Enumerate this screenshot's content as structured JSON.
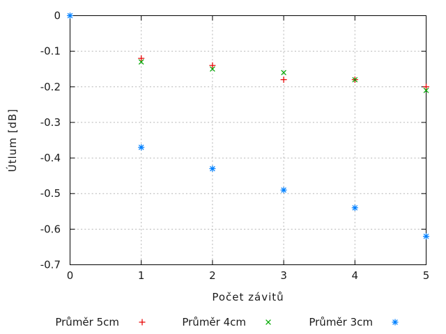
{
  "chart_data": {
    "type": "scatter",
    "title": "",
    "xlabel": "Počet závitů",
    "ylabel": "Útlum [dB]",
    "xlim": [
      0,
      5
    ],
    "ylim": [
      -0.7,
      0
    ],
    "grid": true,
    "legend_position": "bottom",
    "xticks": [
      {
        "value": 0,
        "label": "0"
      },
      {
        "value": 1,
        "label": "1"
      },
      {
        "value": 2,
        "label": "2"
      },
      {
        "value": 3,
        "label": "3"
      },
      {
        "value": 4,
        "label": "4"
      },
      {
        "value": 5,
        "label": "5"
      }
    ],
    "yticks": [
      {
        "value": 0,
        "label": "0"
      },
      {
        "value": -0.1,
        "label": "-0.1"
      },
      {
        "value": -0.2,
        "label": "-0.2"
      },
      {
        "value": -0.3,
        "label": "-0.3"
      },
      {
        "value": -0.4,
        "label": "-0.4"
      },
      {
        "value": -0.5,
        "label": "-0.5"
      },
      {
        "value": -0.6,
        "label": "-0.6"
      },
      {
        "value": -0.7,
        "label": "-0.7"
      }
    ],
    "series": [
      {
        "name": "Průměr 5cm",
        "marker": "plus",
        "color": "#e60000",
        "points": [
          [
            1,
            -0.12
          ],
          [
            2,
            -0.14
          ],
          [
            3,
            -0.18
          ],
          [
            4,
            -0.18
          ],
          [
            5,
            -0.2
          ]
        ]
      },
      {
        "name": "Průměr 4cm",
        "marker": "cross",
        "color": "#00a800",
        "points": [
          [
            1,
            -0.13
          ],
          [
            2,
            -0.15
          ],
          [
            3,
            -0.16
          ],
          [
            4,
            -0.18
          ],
          [
            5,
            -0.21
          ]
        ]
      },
      {
        "name": "Průměr 3cm",
        "marker": "asterisk",
        "color": "#0080ff",
        "points": [
          [
            0,
            0
          ],
          [
            1,
            -0.37
          ],
          [
            2,
            -0.43
          ],
          [
            3,
            -0.49
          ],
          [
            4,
            -0.54
          ],
          [
            5,
            -0.62
          ]
        ]
      }
    ],
    "colors": {
      "axis": "#000000",
      "grid": "#b4b4b4",
      "text": "#1a1a1a",
      "background": "#ffffff"
    }
  }
}
